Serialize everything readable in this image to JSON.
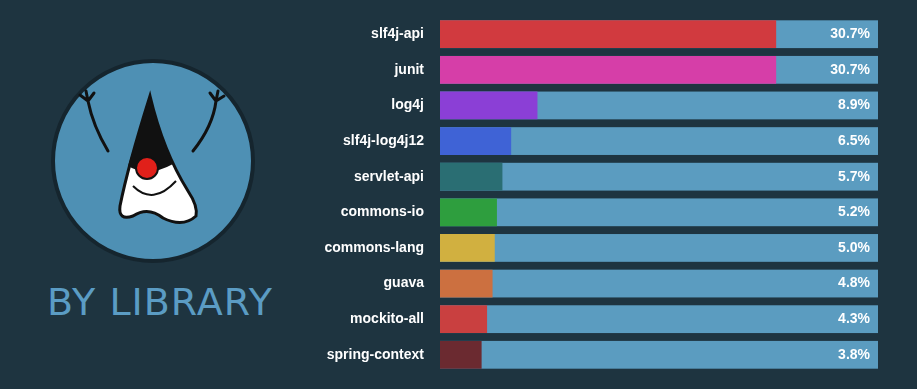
{
  "chart_data": {
    "type": "bar",
    "title": "BY LIBRARY",
    "orientation": "horizontal",
    "categories": [
      "slf4j-api",
      "junit",
      "log4j",
      "slf4j-log4j12",
      "servlet-api",
      "commons-io",
      "commons-lang",
      "guava",
      "mockito-all",
      "spring-context"
    ],
    "values": [
      30.7,
      30.7,
      8.9,
      6.5,
      5.7,
      5.2,
      5.0,
      4.8,
      4.3,
      3.8
    ],
    "value_labels": [
      "30.7%",
      "30.7%",
      "8.9%",
      "6.5%",
      "5.7%",
      "5.2%",
      "5.0%",
      "4.8%",
      "4.3%",
      "3.8%"
    ],
    "colors": [
      "#d13a3f",
      "#d63ea8",
      "#8b3fd6",
      "#3f63d6",
      "#2a6e73",
      "#2e9e3e",
      "#d1b040",
      "#cc7040",
      "#c94040",
      "#6b2a30"
    ],
    "xlim": [
      0,
      40
    ],
    "data_labels": true,
    "tick_labels": "y",
    "grid": false
  }
}
